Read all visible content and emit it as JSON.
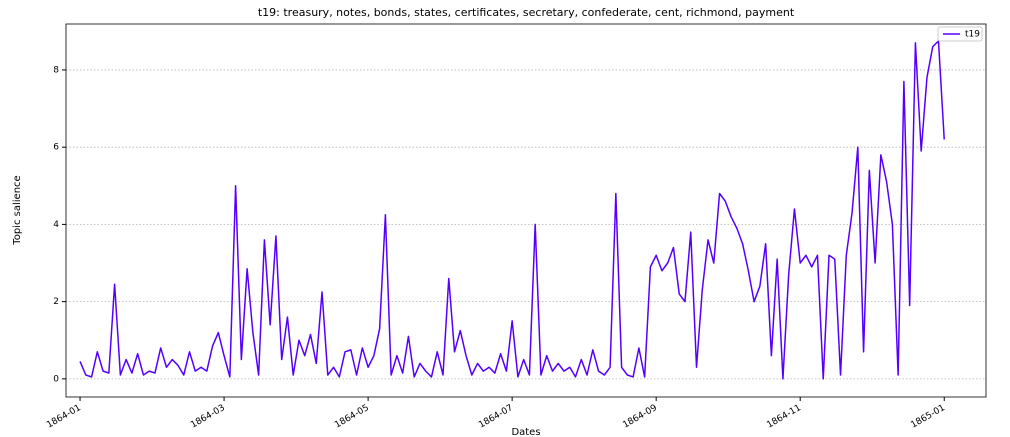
{
  "chart_data": {
    "type": "line",
    "title": "t19: treasury, notes, bonds, states, certificates, secretary, confederate, cent, richmond, payment",
    "xlabel": "Dates",
    "ylabel": "Topic salience",
    "x": [
      0,
      0.08,
      0.16,
      0.24,
      0.32,
      0.4,
      0.48,
      0.56,
      0.64,
      0.72,
      0.8,
      0.88,
      0.96,
      1.04,
      1.12,
      1.2,
      1.28,
      1.36,
      1.44,
      1.52,
      1.6,
      1.68,
      1.76,
      1.84,
      1.92,
      2,
      2.08,
      2.16,
      2.24,
      2.32,
      2.4,
      2.48,
      2.56,
      2.64,
      2.72,
      2.8,
      2.88,
      2.96,
      3.04,
      3.12,
      3.2,
      3.28,
      3.36,
      3.44,
      3.52,
      3.6,
      3.68,
      3.76,
      3.84,
      3.92,
      4,
      4.08,
      4.16,
      4.24,
      4.32,
      4.4,
      4.48,
      4.56,
      4.64,
      4.72,
      4.8,
      4.88,
      4.96,
      5.04,
      5.12,
      5.2,
      5.28,
      5.36,
      5.44,
      5.52,
      5.6,
      5.68,
      5.76,
      5.84,
      5.92,
      6,
      6.08,
      6.16,
      6.24,
      6.32,
      6.4,
      6.48,
      6.56,
      6.64,
      6.72,
      6.8,
      6.88,
      6.96,
      7.04,
      7.12,
      7.2,
      7.28,
      7.36,
      7.44,
      7.52,
      7.6,
      7.68,
      7.76,
      7.84,
      7.92,
      8,
      8.08,
      8.16,
      8.24,
      8.32,
      8.4,
      8.48,
      8.56,
      8.64,
      8.72,
      8.8,
      8.88,
      8.96,
      9.04,
      9.12,
      9.2,
      9.28,
      9.36,
      9.44,
      9.52,
      9.6,
      9.68,
      9.76,
      9.84,
      9.92,
      10,
      10.08,
      10.16,
      10.24,
      10.32,
      10.4,
      10.48,
      10.56,
      10.64,
      10.72,
      10.8,
      10.88,
      10.96,
      11.04,
      11.12,
      11.2,
      11.28,
      11.36,
      11.44,
      11.52,
      11.6,
      11.68,
      11.76,
      11.84,
      11.92,
      12
    ],
    "series": [
      {
        "name": "t19",
        "color": "#5500ff",
        "values": [
          0.45,
          0.1,
          0.05,
          0.7,
          0.2,
          0.15,
          2.45,
          0.1,
          0.5,
          0.15,
          0.65,
          0.1,
          0.2,
          0.15,
          0.8,
          0.3,
          0.5,
          0.35,
          0.1,
          0.7,
          0.2,
          0.3,
          0.2,
          0.85,
          1.2,
          0.6,
          0.05,
          5.0,
          0.5,
          2.85,
          1.2,
          0.1,
          3.6,
          1.4,
          3.7,
          0.5,
          1.6,
          0.1,
          1.0,
          0.6,
          1.15,
          0.4,
          2.25,
          0.1,
          0.3,
          0.05,
          0.7,
          0.75,
          0.1,
          0.8,
          0.3,
          0.6,
          1.3,
          4.25,
          0.1,
          0.6,
          0.15,
          1.1,
          0.05,
          0.4,
          0.2,
          0.05,
          0.7,
          0.1,
          2.6,
          0.7,
          1.25,
          0.6,
          0.1,
          0.4,
          0.2,
          0.3,
          0.15,
          0.65,
          0.2,
          1.5,
          0.05,
          0.5,
          0.1,
          4.0,
          0.1,
          0.6,
          0.2,
          0.4,
          0.2,
          0.3,
          0.05,
          0.5,
          0.1,
          0.75,
          0.2,
          0.1,
          0.3,
          4.8,
          0.3,
          0.1,
          0.05,
          0.8,
          0.05,
          2.9,
          3.2,
          2.8,
          3.0,
          3.4,
          2.2,
          2.0,
          3.8,
          0.3,
          2.3,
          3.6,
          3.0,
          4.8,
          4.6,
          4.2,
          3.9,
          3.5,
          2.8,
          2.0,
          2.4,
          3.5,
          0.6,
          3.1,
          0,
          2.7,
          4.4,
          3.0,
          3.2,
          2.9,
          3.2,
          0,
          3.2,
          3.1,
          0.1,
          3.2,
          4.3,
          6.0,
          0.7,
          5.4,
          3.0,
          5.8,
          5.1,
          4.0,
          0.1,
          7.7,
          1.9,
          8.7,
          5.9,
          7.8,
          8.6,
          8.75,
          6.2
        ]
      }
    ],
    "xlim": [
      -0.195,
      12.58
    ],
    "xticks": [
      {
        "value": 0,
        "label": "1864-01"
      },
      {
        "value": 2,
        "label": "1864-03"
      },
      {
        "value": 4,
        "label": "1864-05"
      },
      {
        "value": 6,
        "label": "1864-07"
      },
      {
        "value": 8,
        "label": "1864-09"
      },
      {
        "value": 10,
        "label": "1864-11"
      },
      {
        "value": 12,
        "label": "1865-01"
      }
    ],
    "ylim": [
      -0.47,
      9.19
    ],
    "yticks": [
      0,
      2,
      4,
      6,
      8
    ],
    "grid": true,
    "legend": "upper right"
  }
}
